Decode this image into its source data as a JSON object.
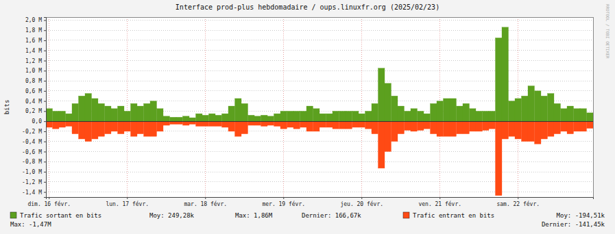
{
  "chart_data": {
    "type": "bar",
    "title": "Interface prod-plus hebdomadaire / oups.linuxfr.org (2025/02/23)",
    "y_label": "bits",
    "watermark": "RRDTOOL / TOBI OETIKER",
    "grid": true,
    "categories": [
      "dim. 16 févr.",
      null,
      null,
      null,
      null,
      null,
      null,
      null,
      null,
      null,
      null,
      null,
      "lun. 17 févr.",
      null,
      null,
      null,
      null,
      null,
      null,
      null,
      null,
      null,
      null,
      null,
      "mar. 18 févr.",
      null,
      null,
      null,
      null,
      null,
      null,
      null,
      null,
      null,
      null,
      null,
      "mer. 19 févr.",
      null,
      null,
      null,
      null,
      null,
      null,
      null,
      null,
      null,
      null,
      null,
      "jeu. 20 févr.",
      null,
      null,
      null,
      null,
      null,
      null,
      null,
      null,
      null,
      null,
      null,
      "ven. 21 févr.",
      null,
      null,
      null,
      null,
      null,
      null,
      null,
      null,
      null,
      null,
      null,
      "sam. 22 févr.",
      null,
      null,
      null,
      null,
      null,
      null,
      null,
      null,
      null,
      null,
      null
    ],
    "ylim": [
      -1500000,
      2060000
    ],
    "yticks": [
      {
        "value": -1400000,
        "label": "-1,4 M"
      },
      {
        "value": -1200000,
        "label": "-1,2 M"
      },
      {
        "value": -1000000,
        "label": "-1,0 M"
      },
      {
        "value": -800000,
        "label": "-0,8 M"
      },
      {
        "value": -600000,
        "label": "-0,6 M"
      },
      {
        "value": -400000,
        "label": "-0,4 M"
      },
      {
        "value": -200000,
        "label": "-0,2 M"
      },
      {
        "value": 0,
        "label": "0,0"
      },
      {
        "value": 200000,
        "label": "0,2 M"
      },
      {
        "value": 400000,
        "label": "0,4 M"
      },
      {
        "value": 600000,
        "label": "0,6 M"
      },
      {
        "value": 800000,
        "label": "0,8 M"
      },
      {
        "value": 1000000,
        "label": "1,0 M"
      },
      {
        "value": 1200000,
        "label": "1,2 M"
      },
      {
        "value": 1400000,
        "label": "1,4 M"
      },
      {
        "value": 1600000,
        "label": "1,6 M"
      },
      {
        "value": 1800000,
        "label": "1,8 M"
      },
      {
        "value": 2000000,
        "label": "2,0 M"
      }
    ],
    "series": [
      {
        "name": "Trafic sortant en bits",
        "color": "#5ca01f",
        "stats": [
          "Moy: 249,28k",
          "Max: 1,86M",
          "Dernier: 166,67k"
        ],
        "values": [
          250000,
          200000,
          200000,
          150000,
          350000,
          500000,
          550000,
          450000,
          350000,
          300000,
          250000,
          300000,
          200000,
          350000,
          300000,
          350000,
          400000,
          250000,
          100000,
          80000,
          80000,
          100000,
          70000,
          150000,
          120000,
          150000,
          120000,
          150000,
          300000,
          450000,
          350000,
          120000,
          100000,
          120000,
          100000,
          150000,
          200000,
          200000,
          200000,
          200000,
          300000,
          250000,
          150000,
          150000,
          200000,
          200000,
          200000,
          200000,
          150000,
          200000,
          350000,
          1050000,
          750000,
          500000,
          300000,
          200000,
          250000,
          200000,
          150000,
          350000,
          400000,
          450000,
          450000,
          300000,
          350000,
          250000,
          200000,
          200000,
          200000,
          1650000,
          1860000,
          400000,
          450000,
          500000,
          700000,
          600000,
          500000,
          550000,
          350000,
          250000,
          300000,
          250000,
          250000,
          166670
        ]
      },
      {
        "name": "Trafic entrant en bits",
        "color": "#ff4a14",
        "stats": [
          "Moy: -194,51k",
          "Max: -1,47M",
          "Dernier: -141,45k"
        ],
        "values": [
          -120000,
          -150000,
          -120000,
          -100000,
          -250000,
          -350000,
          -400000,
          -350000,
          -300000,
          -250000,
          -200000,
          -250000,
          -200000,
          -300000,
          -250000,
          -300000,
          -300000,
          -200000,
          -80000,
          -60000,
          -60000,
          -80000,
          -60000,
          -100000,
          -100000,
          -100000,
          -100000,
          -120000,
          -200000,
          -300000,
          -250000,
          -80000,
          -80000,
          -100000,
          -80000,
          -100000,
          -150000,
          -120000,
          -150000,
          -120000,
          -200000,
          -200000,
          -120000,
          -120000,
          -150000,
          -150000,
          -150000,
          -120000,
          -120000,
          -150000,
          -250000,
          -930000,
          -600000,
          -400000,
          -250000,
          -180000,
          -200000,
          -180000,
          -150000,
          -250000,
          -300000,
          -300000,
          -300000,
          -250000,
          -250000,
          -200000,
          -200000,
          -180000,
          -150000,
          -1470000,
          -350000,
          -300000,
          -350000,
          -400000,
          -400000,
          -450000,
          -350000,
          -300000,
          -250000,
          -200000,
          -250000,
          -200000,
          -200000,
          -141450
        ]
      }
    ]
  }
}
